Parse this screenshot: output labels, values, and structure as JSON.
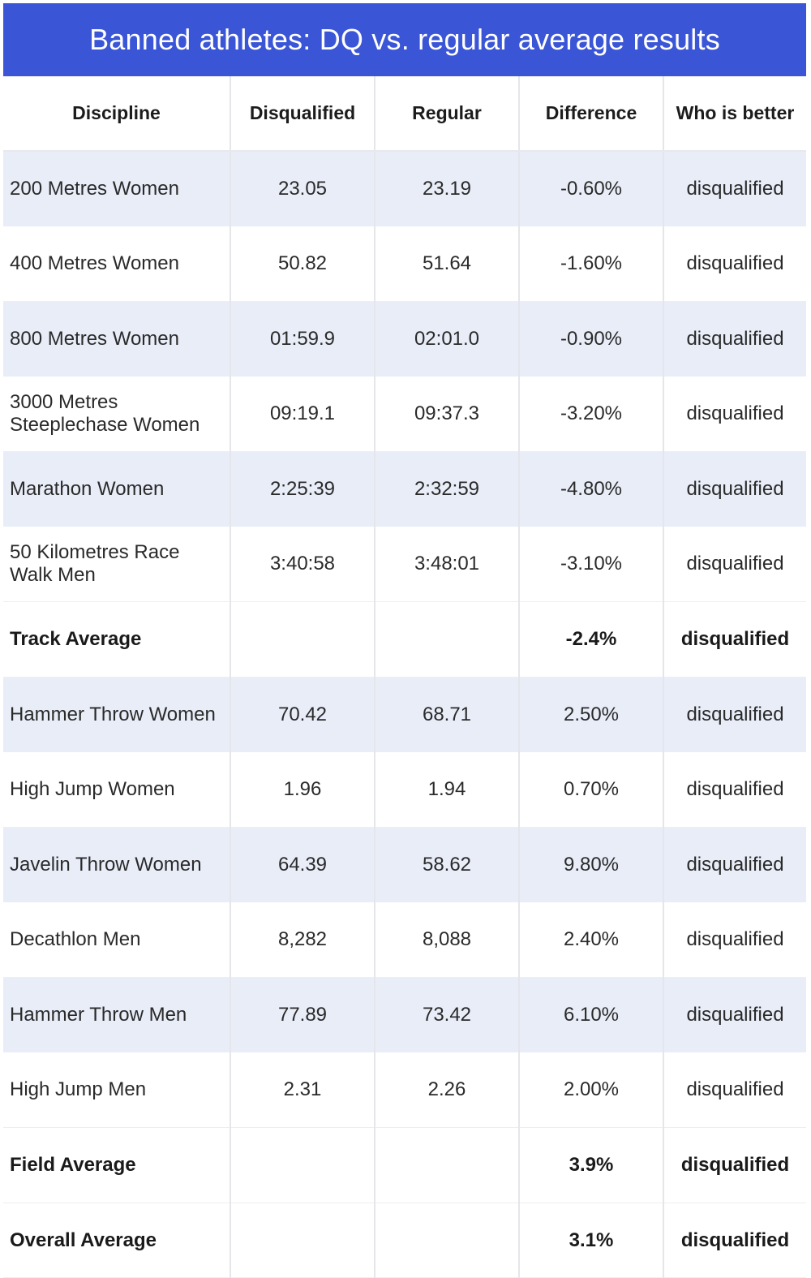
{
  "title": "Banned athletes: DQ vs. regular average results",
  "columns": [
    "Discipline",
    "Disqualified",
    "Regular",
    "Difference",
    "Who is better"
  ],
  "rows": [
    {
      "discipline": "200 Metres Women",
      "disqualified": "23.05",
      "regular": "23.19",
      "difference": "-0.60%",
      "better": "disqualified",
      "style": "shade"
    },
    {
      "discipline": "400 Metres Women",
      "disqualified": "50.82",
      "regular": "51.64",
      "difference": "-1.60%",
      "better": "disqualified",
      "style": "plain"
    },
    {
      "discipline": "800 Metres Women",
      "disqualified": "01:59.9",
      "regular": "02:01.0",
      "difference": "-0.90%",
      "better": "disqualified",
      "style": "shade"
    },
    {
      "discipline": "3000 Metres Steeplechase Women",
      "disqualified": "09:19.1",
      "regular": "09:37.3",
      "difference": "-3.20%",
      "better": "disqualified",
      "style": "plain"
    },
    {
      "discipline": "Marathon Women",
      "disqualified": "2:25:39",
      "regular": "2:32:59",
      "difference": "-4.80%",
      "better": "disqualified",
      "style": "shade"
    },
    {
      "discipline": "50 Kilometres Race Walk Men",
      "disqualified": "3:40:58",
      "regular": "3:48:01",
      "difference": "-3.10%",
      "better": "disqualified",
      "style": "plain"
    },
    {
      "discipline": "Track Average",
      "disqualified": "",
      "regular": "",
      "difference": "-2.4%",
      "better": "disqualified",
      "style": "avg"
    },
    {
      "discipline": "Hammer Throw Women",
      "disqualified": "70.42",
      "regular": "68.71",
      "difference": "2.50%",
      "better": "disqualified",
      "style": "shade"
    },
    {
      "discipline": "High Jump Women",
      "disqualified": "1.96",
      "regular": "1.94",
      "difference": "0.70%",
      "better": "disqualified",
      "style": "plain"
    },
    {
      "discipline": "Javelin Throw Women",
      "disqualified": "64.39",
      "regular": "58.62",
      "difference": "9.80%",
      "better": "disqualified",
      "style": "shade"
    },
    {
      "discipline": "Decathlon Men",
      "disqualified": "8,282",
      "regular": "8,088",
      "difference": "2.40%",
      "better": "disqualified",
      "style": "plain"
    },
    {
      "discipline": "Hammer Throw Men",
      "disqualified": "77.89",
      "regular": "73.42",
      "difference": "6.10%",
      "better": "disqualified",
      "style": "shade"
    },
    {
      "discipline": "High Jump Men",
      "disqualified": "2.31",
      "regular": "2.26",
      "difference": "2.00%",
      "better": "disqualified",
      "style": "plain"
    },
    {
      "discipline": "Field Average",
      "disqualified": "",
      "regular": "",
      "difference": "3.9%",
      "better": "disqualified",
      "style": "avg"
    },
    {
      "discipline": "Overall Average",
      "disqualified": "",
      "regular": "",
      "difference": "3.1%",
      "better": "disqualified",
      "style": "avg"
    }
  ],
  "colors": {
    "header_bar": "#3a55d6",
    "row_shade": "#e8edf8",
    "grid": "#e4e6ea"
  }
}
